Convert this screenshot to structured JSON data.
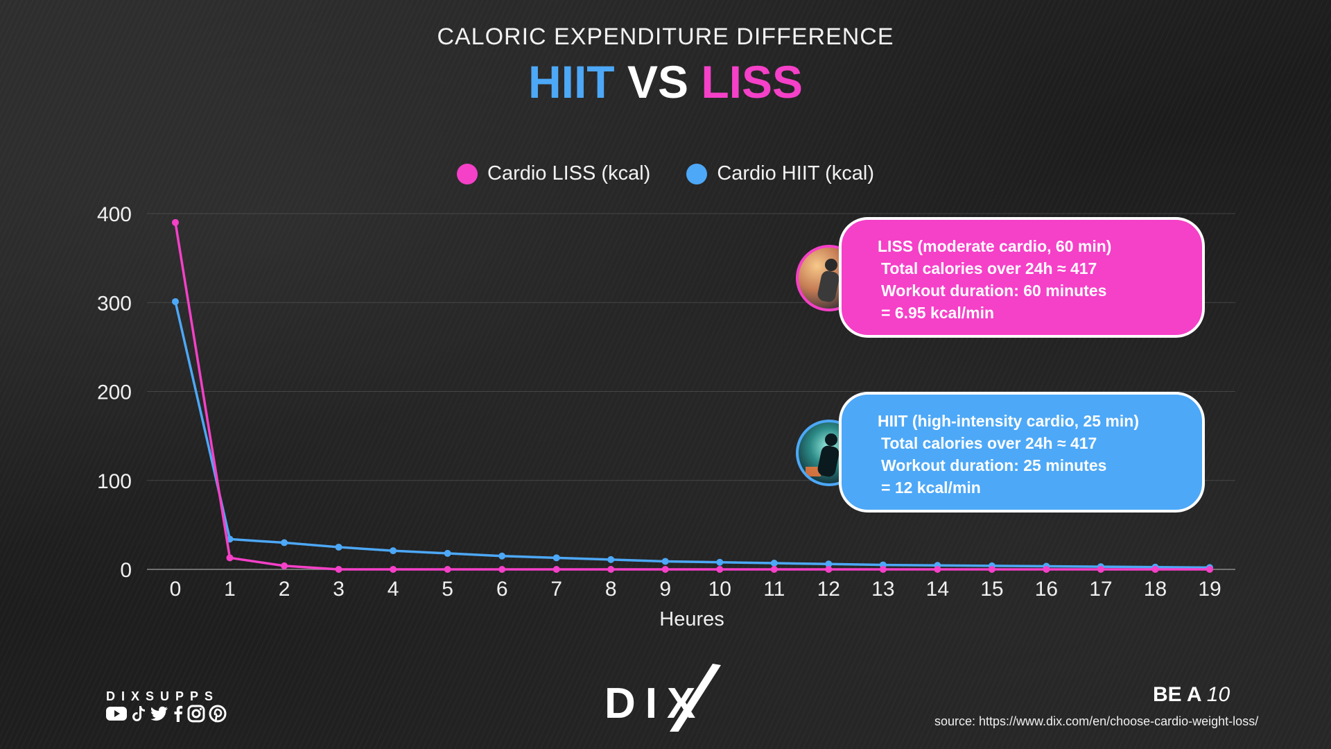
{
  "header": {
    "subtitle": "CALORIC EXPENDITURE DIFFERENCE",
    "title_hiit": "HIIT",
    "title_vs": " VS ",
    "title_liss": "LISS"
  },
  "colors": {
    "liss": "#f540c8",
    "hiit": "#4da8f7",
    "grid": "#5a5a5a"
  },
  "chart_data": {
    "type": "line",
    "xlabel": "Heures",
    "ylabel": "",
    "x": [
      0,
      1,
      2,
      3,
      4,
      5,
      6,
      7,
      8,
      9,
      10,
      11,
      12,
      13,
      14,
      15,
      16,
      17,
      18,
      19
    ],
    "ylim": [
      0,
      400
    ],
    "yticks": [
      0,
      100,
      200,
      300,
      400
    ],
    "grid": true,
    "legend_position": "top-center",
    "series": [
      {
        "name": "Cardio LISS (kcal)",
        "color": "#f540c8",
        "values": [
          390,
          13,
          4,
          0,
          0,
          0,
          0,
          0,
          0,
          0,
          0,
          0,
          0,
          0,
          0,
          0,
          0,
          0,
          0,
          0
        ]
      },
      {
        "name": "Cardio HIIT (kcal)",
        "color": "#4da8f7",
        "values": [
          301,
          34,
          30,
          25,
          21,
          18,
          15,
          13,
          11,
          9,
          8,
          7,
          6,
          5,
          4.5,
          4,
          3.5,
          3,
          2.5,
          2
        ]
      }
    ]
  },
  "cards": {
    "liss": {
      "line1": "LISS (moderate cardio, 60 min)",
      "line2": "Total calories over 24h ≈ 417",
      "line3": "Workout duration: 60 minutes",
      "line4": "= 6.95 kcal/min"
    },
    "hiit": {
      "line1": "HIIT (high-intensity cardio, 25 min)",
      "line2": "Total calories over 24h ≈ 417",
      "line3": "Workout duration: 25 minutes",
      "line4": "= 12 kcal/min"
    }
  },
  "footer": {
    "brand_name": "DIXSUPPS",
    "logo": "DIX",
    "tagline_bold": "BE A ",
    "tagline_italic": "10",
    "source": "source: https://www.dix.com/en/choose-cardio-weight-loss/",
    "social_icons": [
      "youtube-icon",
      "tiktok-icon",
      "twitter-icon",
      "facebook-icon",
      "instagram-icon",
      "pinterest-icon"
    ]
  }
}
